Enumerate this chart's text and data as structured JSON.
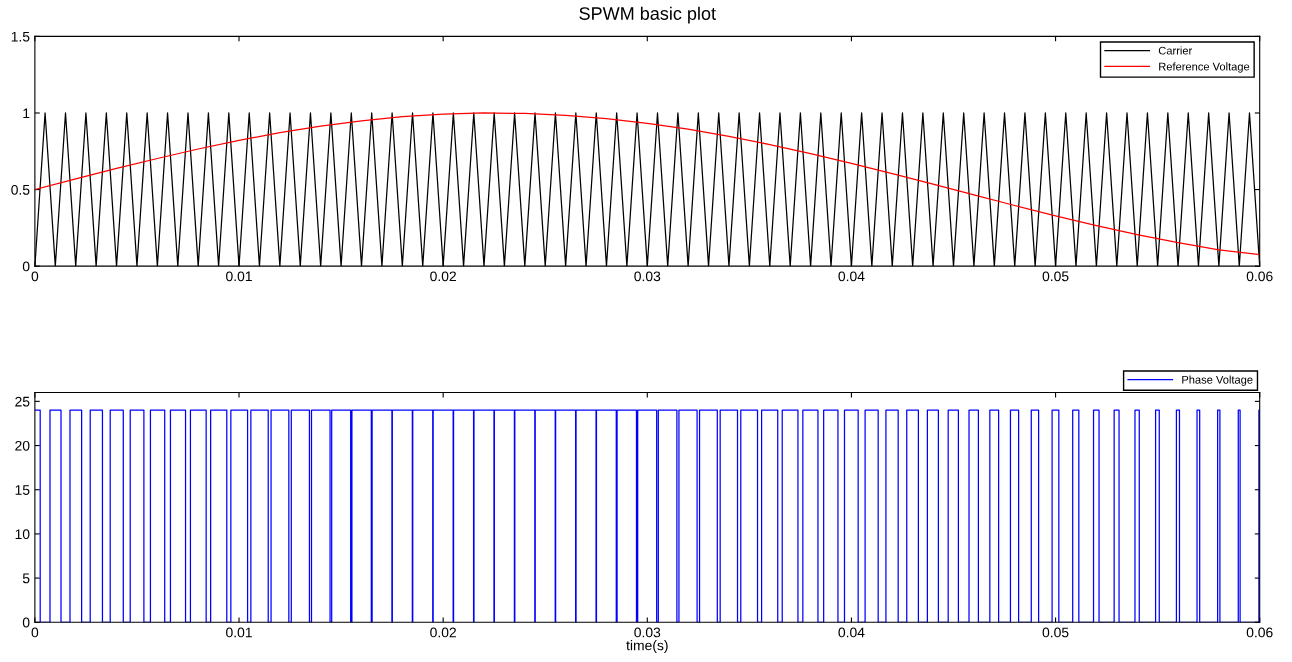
{
  "chart_data": [
    {
      "type": "line",
      "title": "SPWM basic plot",
      "xlim": [
        0,
        0.06
      ],
      "xticks": [
        0,
        0.01,
        0.02,
        0.03,
        0.04,
        0.05,
        0.06
      ],
      "ylim": [
        0,
        1.5
      ],
      "yticks": [
        0,
        0.5,
        1,
        1.5
      ],
      "legend": "top right",
      "grid": false,
      "series": [
        {
          "name": "Carrier",
          "color": "#000000",
          "x": [
            0,
            0.0005,
            0.001,
            0.0015,
            0.002,
            0.0025,
            0.003,
            0.0035,
            0.004,
            0.0045,
            0.005,
            0.0055,
            0.006,
            0.0065,
            0.007,
            0.0075,
            0.008,
            0.0085,
            0.009,
            0.0095,
            0.01,
            0.0105,
            0.011,
            0.0115,
            0.012,
            0.0125,
            0.013,
            0.0135,
            0.014,
            0.0145,
            0.015,
            0.0155,
            0.016,
            0.0165,
            0.017,
            0.0175,
            0.018,
            0.0185,
            0.019,
            0.0195,
            0.02,
            0.0205,
            0.021,
            0.0215,
            0.022,
            0.0225,
            0.023,
            0.0235,
            0.024,
            0.0245,
            0.025,
            0.0255,
            0.026,
            0.0265,
            0.027,
            0.0275,
            0.028,
            0.0285,
            0.029,
            0.0295,
            0.03,
            0.0305,
            0.031,
            0.0315,
            0.032,
            0.0325,
            0.033,
            0.0335,
            0.034,
            0.0345,
            0.035,
            0.0355,
            0.036,
            0.0365,
            0.037,
            0.0375,
            0.038,
            0.0385,
            0.039,
            0.0395,
            0.04,
            0.0405,
            0.041,
            0.0415,
            0.042,
            0.0425,
            0.043,
            0.0435,
            0.044,
            0.0445,
            0.045,
            0.0455,
            0.046,
            0.0465,
            0.047,
            0.0475,
            0.048,
            0.0485,
            0.049,
            0.0495,
            0.05,
            0.0505,
            0.051,
            0.0515,
            0.052,
            0.0525,
            0.053,
            0.0535,
            0.054,
            0.0545,
            0.055,
            0.0555,
            0.056,
            0.0565,
            0.057,
            0.0575,
            0.058,
            0.0585,
            0.059,
            0.0595,
            0.06
          ],
          "values": [
            0,
            1,
            0,
            1,
            0,
            1,
            0,
            1,
            0,
            1,
            0,
            1,
            0,
            1,
            0,
            1,
            0,
            1,
            0,
            1,
            0,
            1,
            0,
            1,
            0,
            1,
            0,
            1,
            0,
            1,
            0,
            1,
            0,
            1,
            0,
            1,
            0,
            1,
            0,
            1,
            0,
            1,
            0,
            1,
            0,
            1,
            0,
            1,
            0,
            1,
            0,
            1,
            0,
            1,
            0,
            1,
            0,
            1,
            0,
            1,
            0,
            1,
            0,
            1,
            0,
            1,
            0,
            1,
            0,
            1,
            0,
            1,
            0,
            1,
            0,
            1,
            0,
            1,
            0,
            1,
            0,
            1,
            0,
            1,
            0,
            1,
            0,
            1,
            0,
            1,
            0,
            1,
            0,
            1,
            0,
            1,
            0,
            1,
            0,
            1,
            0,
            1,
            0,
            1,
            0,
            1,
            0,
            1,
            0,
            1,
            0,
            1,
            0,
            1,
            0,
            1,
            0,
            1,
            0,
            1,
            0
          ]
        },
        {
          "name": "Reference Voltage",
          "color": "#ff0000",
          "x": [
            0,
            0.002,
            0.004,
            0.006,
            0.008,
            0.01,
            0.012,
            0.014,
            0.016,
            0.018,
            0.02,
            0.022,
            0.024,
            0.026,
            0.028,
            0.03,
            0.032,
            0.034,
            0.036,
            0.038,
            0.04,
            0.042,
            0.044,
            0.046,
            0.048,
            0.05,
            0.052,
            0.054,
            0.056,
            0.058,
            0.06
          ],
          "values": [
            0.5,
            0.57,
            0.638,
            0.703,
            0.765,
            0.821,
            0.872,
            0.915,
            0.949,
            0.976,
            0.992,
            1.0,
            0.997,
            0.985,
            0.964,
            0.933,
            0.894,
            0.847,
            0.794,
            0.735,
            0.671,
            0.604,
            0.535,
            0.465,
            0.396,
            0.329,
            0.265,
            0.206,
            0.153,
            0.106,
            0.075
          ]
        }
      ]
    },
    {
      "type": "step",
      "xlabel": "time(s)",
      "xlim": [
        0,
        0.06
      ],
      "xticks": [
        0,
        0.01,
        0.02,
        0.03,
        0.04,
        0.05,
        0.06
      ],
      "ylim": [
        0,
        26
      ],
      "yticks": [
        0,
        5,
        10,
        15,
        20,
        25
      ],
      "legend": "top right",
      "grid": false,
      "series": [
        {
          "name": "Phase Voltage",
          "color": "#0000ff",
          "x": [
            0,
            0.00026,
            0.00074,
            0.00128,
            0.00172,
            0.00229,
            0.00271,
            0.00331,
            0.00369,
            0.00433,
            0.00467,
            0.00534,
            0.00566,
            0.00636,
            0.00664,
            0.00738,
            0.00762,
            0.00839,
            0.00861,
            0.0094,
            0.0096,
            0.01042,
            0.01058,
            0.01143,
            0.01157,
            0.01244,
            0.01256,
            0.01345,
            0.01355,
            0.01446,
            0.01454,
            0.01547,
            0.01553,
            0.01648,
            0.01652,
            0.01749,
            0.01751,
            0.01849,
            0.01851,
            0.01949,
            0.01951,
            0.02049,
            0.02051,
            0.02149,
            0.02151,
            0.02249,
            0.02251,
            0.02349,
            0.02351,
            0.02449,
            0.02451,
            0.02549,
            0.02551,
            0.02649,
            0.02651,
            0.02749,
            0.02751,
            0.02848,
            0.02852,
            0.02947,
            0.02953,
            0.03046,
            0.03054,
            0.03145,
            0.03155,
            0.03244,
            0.03256,
            0.03343,
            0.03357,
            0.03442,
            0.03458,
            0.0354,
            0.0356,
            0.03639,
            0.03661,
            0.03738,
            0.03762,
            0.03836,
            0.03864,
            0.03934,
            0.03966,
            0.04033,
            0.04067,
            0.04131,
            0.04169,
            0.04229,
            0.04271,
            0.04328,
            0.04372,
            0.04426,
            0.04474,
            0.04524,
            0.04576,
            0.04622,
            0.04678,
            0.04721,
            0.04779,
            0.04819,
            0.04881,
            0.04917,
            0.04983,
            0.05016,
            0.05084,
            0.05114,
            0.05186,
            0.05213,
            0.05287,
            0.05311,
            0.05389,
            0.0541,
            0.0549,
            0.05508,
            0.05592,
            0.05607,
            0.05693,
            0.05706,
            0.05794,
            0.05805,
            0.05895,
            0.05904,
            0.05996,
            0.06
          ],
          "values": [
            24,
            0,
            24,
            0,
            24,
            0,
            24,
            0,
            24,
            0,
            24,
            0,
            24,
            0,
            24,
            0,
            24,
            0,
            24,
            0,
            24,
            0,
            24,
            0,
            24,
            0,
            24,
            0,
            24,
            0,
            24,
            0,
            24,
            0,
            24,
            0,
            24,
            0,
            24,
            0,
            24,
            0,
            24,
            0,
            24,
            0,
            24,
            0,
            24,
            0,
            24,
            0,
            24,
            0,
            24,
            0,
            24,
            0,
            24,
            0,
            24,
            0,
            24,
            0,
            24,
            0,
            24,
            0,
            24,
            0,
            24,
            0,
            24,
            0,
            24,
            0,
            24,
            0,
            24,
            0,
            24,
            0,
            24,
            0,
            24,
            0,
            24,
            0,
            24,
            0,
            24,
            0,
            24,
            0,
            24,
            0,
            24,
            0,
            24,
            0,
            24,
            0,
            24,
            0,
            24,
            0,
            24,
            0,
            24,
            0,
            24,
            0,
            24,
            0,
            24,
            0,
            24,
            0,
            24,
            0,
            24,
            24
          ]
        }
      ]
    }
  ]
}
